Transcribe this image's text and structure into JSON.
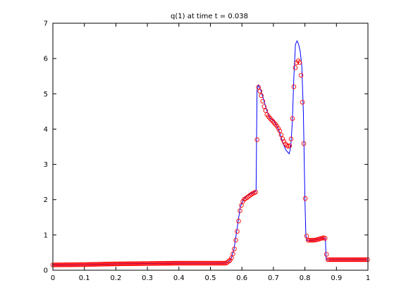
{
  "chart_data": {
    "type": "line",
    "title": "q(1)   at time t = 0.038",
    "xlabel": "",
    "ylabel": "",
    "xlim": [
      0,
      1
    ],
    "ylim": [
      0,
      7
    ],
    "xticks": [
      "0",
      "0.1",
      "0.2",
      "0.3",
      "0.4",
      "0.5",
      "0.6",
      "0.7",
      "0.8",
      "0.9",
      "1"
    ],
    "yticks": [
      "0",
      "1",
      "2",
      "3",
      "4",
      "5",
      "6",
      "7"
    ],
    "grid": false,
    "legend": "none",
    "series": [
      {
        "style": "solid-line",
        "color": "#0000ff",
        "x": [
          0.0,
          0.1,
          0.2,
          0.3,
          0.4,
          0.5,
          0.55,
          0.565,
          0.575,
          0.585,
          0.595,
          0.605,
          0.615,
          0.625,
          0.635,
          0.645,
          0.648,
          0.652,
          0.66,
          0.67,
          0.68,
          0.69,
          0.7,
          0.71,
          0.72,
          0.73,
          0.74,
          0.75,
          0.755,
          0.76,
          0.765,
          0.77,
          0.775,
          0.78,
          0.785,
          0.79,
          0.795,
          0.8,
          0.803,
          0.806,
          0.81,
          0.82,
          0.83,
          0.84,
          0.85,
          0.86,
          0.865,
          0.867,
          0.87,
          0.9,
          0.95,
          1.0
        ],
        "y": [
          0.15,
          0.16,
          0.18,
          0.19,
          0.2,
          0.2,
          0.2,
          0.3,
          0.6,
          1.2,
          1.8,
          2.0,
          2.1,
          2.15,
          2.2,
          2.25,
          5.1,
          5.25,
          5.1,
          4.8,
          4.5,
          4.3,
          4.25,
          4.1,
          3.9,
          3.6,
          3.4,
          3.3,
          3.5,
          4.2,
          5.5,
          6.4,
          6.5,
          6.4,
          6.2,
          5.8,
          4.5,
          2.0,
          1.0,
          0.85,
          0.85,
          0.85,
          0.85,
          0.88,
          0.9,
          0.92,
          0.9,
          0.35,
          0.3,
          0.3,
          0.3,
          0.3
        ]
      },
      {
        "style": "circle-markers",
        "color": "#ff0000",
        "x": [
          0.0,
          0.1,
          0.2,
          0.3,
          0.4,
          0.5,
          0.55,
          0.565,
          0.575,
          0.585,
          0.595,
          0.605,
          0.615,
          0.625,
          0.635,
          0.645,
          0.648,
          0.652,
          0.66,
          0.67,
          0.68,
          0.69,
          0.7,
          0.71,
          0.72,
          0.73,
          0.74,
          0.75,
          0.755,
          0.76,
          0.765,
          0.77,
          0.775,
          0.78,
          0.785,
          0.79,
          0.795,
          0.8,
          0.803,
          0.806,
          0.81,
          0.82,
          0.83,
          0.84,
          0.85,
          0.86,
          0.865,
          0.867,
          0.87,
          0.9,
          0.95,
          1.0
        ],
        "y": [
          0.15,
          0.16,
          0.18,
          0.19,
          0.2,
          0.2,
          0.2,
          0.3,
          0.55,
          1.1,
          1.75,
          2.0,
          2.05,
          2.12,
          2.18,
          2.22,
          3.7,
          5.2,
          5.0,
          4.65,
          4.4,
          4.3,
          4.2,
          4.1,
          3.95,
          3.7,
          3.55,
          3.5,
          3.6,
          4.2,
          5.2,
          5.8,
          5.9,
          5.95,
          5.85,
          5.2,
          4.1,
          2.4,
          1.3,
          0.9,
          0.85,
          0.85,
          0.85,
          0.87,
          0.9,
          0.92,
          0.9,
          0.6,
          0.3,
          0.3,
          0.3,
          0.3
        ]
      }
    ]
  }
}
